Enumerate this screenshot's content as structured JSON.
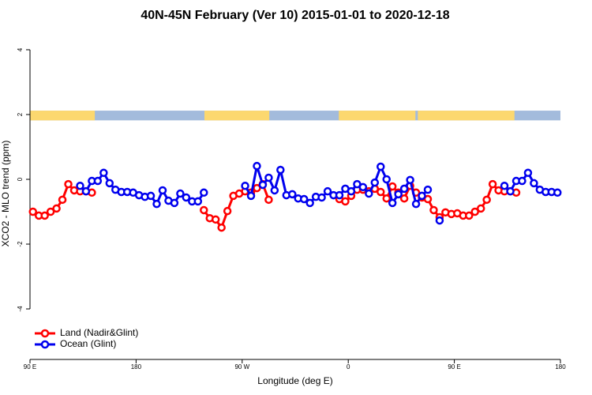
{
  "chart_data": {
    "type": "line",
    "title": "40N-45N February (Ver 10)   2015-01-01 to 2020-12-18",
    "x_label": "Longitude (deg E)",
    "y_label": "XCO2 - MLO trend (ppm)",
    "xlim": [
      90,
      540
    ],
    "xticks": [
      {
        "value": 90,
        "label": "90 E"
      },
      180,
      {
        "value": 270,
        "label": "90 W"
      },
      {
        "value": 360,
        "label": "0"
      },
      {
        "value": 450,
        "label": "90 E"
      },
      {
        "value": 540,
        "label": "180"
      }
    ],
    "ylim": [
      -5.56,
      4.56
    ],
    "yticks": [
      -4,
      -2,
      0,
      2,
      4
    ],
    "legend": "bottom-left",
    "land_mask": {
      "ylim": [
        1.82,
        2.12
      ],
      "land_color": "#fcd86f",
      "ocean_color": "#a3bbdc",
      "land": [
        [
          90,
          145
        ],
        [
          238,
          293
        ],
        [
          352,
          417
        ],
        [
          419,
          501
        ]
      ]
    },
    "series": [
      {
        "name": "Land (Nadir&Glint)",
        "color": "#ff0000",
        "x": [
          92.5,
          97.5,
          102.5,
          107.5,
          112.5,
          117.5,
          122.5,
          127.5,
          132.5,
          137.5,
          142.5,
          null,
          237.5,
          242.5,
          247.5,
          252.5,
          257.5,
          262.5,
          267.5,
          272.5,
          277.5,
          282.5,
          287.5,
          292.5,
          null,
          352.5,
          357.5,
          362.5,
          367.5,
          372.5,
          377.5,
          382.5,
          387.5,
          392.5,
          397.5,
          402.5,
          407.5,
          412.5,
          417.5,
          422.5,
          427.5,
          432.5,
          437.5,
          442.5,
          447.5,
          452.5,
          457.5,
          462.5,
          467.5,
          472.5,
          477.5,
          482.5,
          487.5,
          492.5,
          497.5,
          502.5
        ],
        "values": [
          -1.0,
          -1.12,
          -1.12,
          -1.0,
          -0.9,
          -0.63,
          -0.15,
          -0.34,
          -0.37,
          -0.37,
          -0.41,
          null,
          -0.95,
          -1.2,
          -1.24,
          -1.49,
          -0.98,
          -0.51,
          -0.44,
          -0.37,
          -0.41,
          -0.27,
          -0.15,
          -0.63,
          null,
          -0.61,
          -0.68,
          -0.51,
          -0.32,
          -0.32,
          -0.37,
          -0.29,
          -0.39,
          -0.59,
          -0.22,
          -0.41,
          -0.59,
          -0.2,
          -0.41,
          -0.56,
          -0.61,
          -0.95,
          -1.17,
          -1.02,
          -1.07,
          -1.05,
          -1.12,
          -1.12,
          -1.0,
          -0.9,
          -0.63,
          -0.15,
          -0.34,
          -0.37,
          -0.37,
          -0.41
        ]
      },
      {
        "name": "Ocean (Glint)",
        "color": "#0000ee",
        "x": [
          132.5,
          137.5,
          142.5,
          147.5,
          152.5,
          157.5,
          162.5,
          167.5,
          172.5,
          177.5,
          182.5,
          187.5,
          192.5,
          197.5,
          202.5,
          207.5,
          212.5,
          217.5,
          222.5,
          227.5,
          232.5,
          237.5,
          null,
          272.5,
          277.5,
          282.5,
          287.5,
          292.5,
          297.5,
          302.5,
          307.5,
          312.5,
          317.5,
          322.5,
          327.5,
          332.5,
          337.5,
          342.5,
          347.5,
          352.5,
          357.5,
          362.5,
          367.5,
          372.5,
          377.5,
          382.5,
          387.5,
          392.5,
          397.5,
          402.5,
          407.5,
          412.5,
          417.5,
          422.5,
          427.5,
          null,
          437.5,
          null,
          492.5,
          497.5,
          502.5,
          507.5,
          512.5,
          517.5,
          522.5,
          527.5,
          532.5,
          537.5
        ],
        "values": [
          -0.2,
          -0.37,
          -0.05,
          -0.05,
          0.2,
          -0.12,
          -0.32,
          -0.39,
          -0.39,
          -0.41,
          -0.49,
          -0.54,
          -0.51,
          -0.76,
          -0.34,
          -0.66,
          -0.73,
          -0.44,
          -0.56,
          -0.68,
          -0.68,
          -0.41,
          null,
          -0.2,
          -0.51,
          0.41,
          -0.17,
          0.05,
          -0.34,
          0.29,
          -0.49,
          -0.46,
          -0.59,
          -0.61,
          -0.73,
          -0.54,
          -0.56,
          -0.37,
          -0.49,
          -0.49,
          -0.29,
          -0.37,
          -0.15,
          -0.24,
          -0.44,
          -0.1,
          0.39,
          0,
          -0.73,
          -0.46,
          -0.29,
          -0.02,
          -0.76,
          -0.51,
          -0.32,
          null,
          -1.27,
          null,
          -0.2,
          -0.37,
          -0.05,
          -0.05,
          0.2,
          -0.12,
          -0.32,
          -0.39,
          -0.39,
          -0.41
        ]
      }
    ]
  }
}
